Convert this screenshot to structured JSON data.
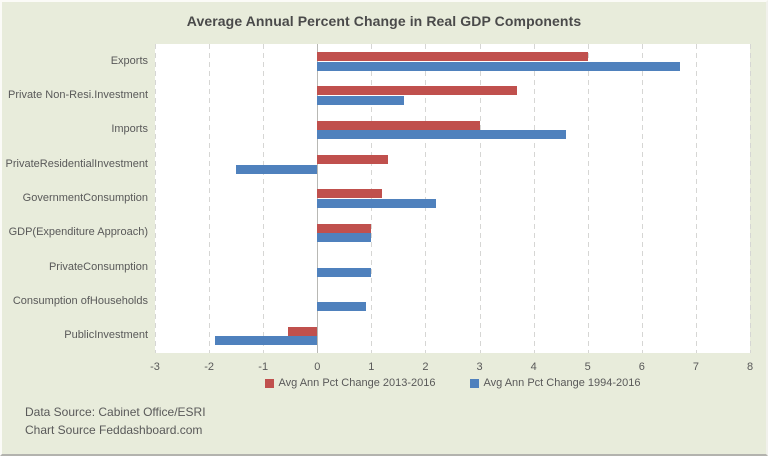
{
  "title": "Average Annual Percent Change in Real GDP Components",
  "colors": {
    "background": "#e8ecdb",
    "plot_background": "#ffffff",
    "gridline": "#d6d6d4",
    "zero_line": "#b8b8b4",
    "text": "#595959",
    "title_text": "#4a4a4a",
    "series_red": "#c0504d",
    "series_blue": "#4f81bd"
  },
  "footer": {
    "line1": "Data Source: Cabinet Office/ESRI",
    "line2": "Chart Source Feddashboard.com"
  },
  "chart_data": {
    "type": "bar",
    "orientation": "horizontal",
    "title": "Average Annual Percent Change in Real GDP Components",
    "xlabel": "",
    "ylabel": "",
    "categories": [
      "Exports",
      "Private Non-Resi.Investment",
      "Imports",
      "PrivateResidentialInvestment",
      "GovernmentConsumption",
      "GDP(Expenditure Approach)",
      "PrivateConsumption",
      "Consumption ofHouseholds",
      "PublicInvestment"
    ],
    "series": [
      {
        "name": "Avg Ann Pct Change 2013-2016",
        "color": "#c0504d",
        "values": [
          5.0,
          3.7,
          3.0,
          1.3,
          1.2,
          1.0,
          0,
          0,
          -0.55
        ]
      },
      {
        "name": "Avg Ann Pct Change 1994-2016",
        "color": "#4f81bd",
        "values": [
          6.7,
          1.6,
          4.6,
          -1.5,
          2.2,
          1.0,
          1.0,
          0.9,
          -1.9
        ]
      }
    ],
    "xlim": [
      -3,
      8
    ],
    "x_ticks": [
      -3,
      -2,
      -1,
      0,
      1,
      2,
      3,
      4,
      5,
      6,
      7,
      8
    ],
    "grid": "dashed-vertical",
    "legend_position": "bottom"
  }
}
